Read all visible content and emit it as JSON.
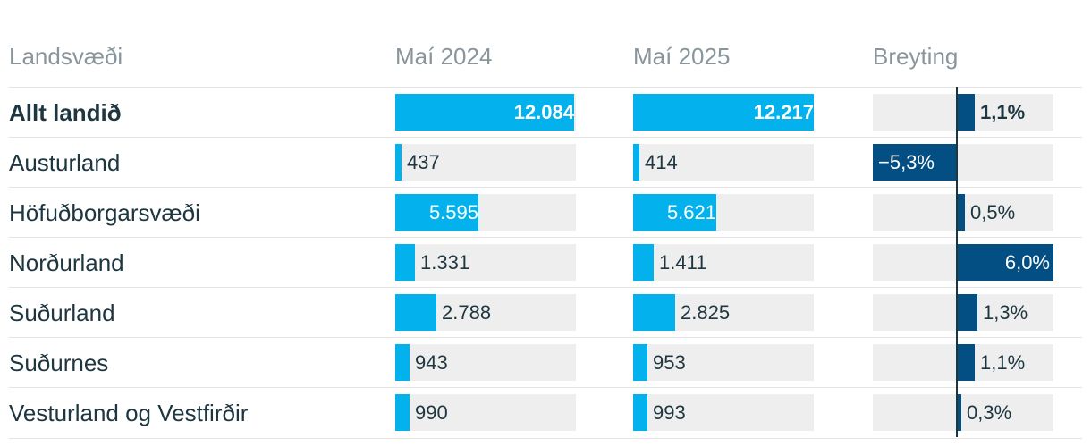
{
  "headers": {
    "region": "Landsvæði",
    "col1": "Maí 2024",
    "col2": "Maí 2025",
    "change": "Breyting"
  },
  "chart_data": {
    "type": "table",
    "columns": [
      "Landsvæði",
      "Maí 2024",
      "Maí 2025",
      "Breyting"
    ],
    "rows": [
      {
        "region": "Allt landið",
        "v2024": 12084,
        "v2025": 12217,
        "change": 1.1,
        "v2024_label": "12.084",
        "v2025_label": "12.217",
        "change_label": "1,1%",
        "bold": true
      },
      {
        "region": "Austurland",
        "v2024": 437,
        "v2025": 414,
        "change": -5.3,
        "v2024_label": "437",
        "v2025_label": "414",
        "change_label": "−5,3%",
        "bold": false
      },
      {
        "region": "Höfuðborgarsvæði",
        "v2024": 5595,
        "v2025": 5621,
        "change": 0.5,
        "v2024_label": "5.595",
        "v2025_label": "5.621",
        "change_label": "0,5%",
        "bold": false
      },
      {
        "region": "Norðurland",
        "v2024": 1331,
        "v2025": 1411,
        "change": 6.0,
        "v2024_label": "1.331",
        "v2025_label": "1.411",
        "change_label": "6,0%",
        "bold": false
      },
      {
        "region": "Suðurland",
        "v2024": 2788,
        "v2025": 2825,
        "change": 1.3,
        "v2024_label": "2.788",
        "v2025_label": "2.825",
        "change_label": "1,3%",
        "bold": false
      },
      {
        "region": "Suðurnes",
        "v2024": 943,
        "v2025": 953,
        "change": 1.1,
        "v2024_label": "943",
        "v2025_label": "953",
        "change_label": "1,1%",
        "bold": false
      },
      {
        "region": "Vesturland og Vestfirðir",
        "v2024": 990,
        "v2025": 993,
        "change": 0.3,
        "v2024_label": "990",
        "v2025_label": "993",
        "change_label": "0,3%",
        "bold": false
      }
    ],
    "colors": {
      "value_bar": "#03b2ec",
      "change_bar": "#034f84",
      "track": "#eeeeee",
      "text": "#1d3640",
      "header_text": "#8a959b"
    }
  }
}
